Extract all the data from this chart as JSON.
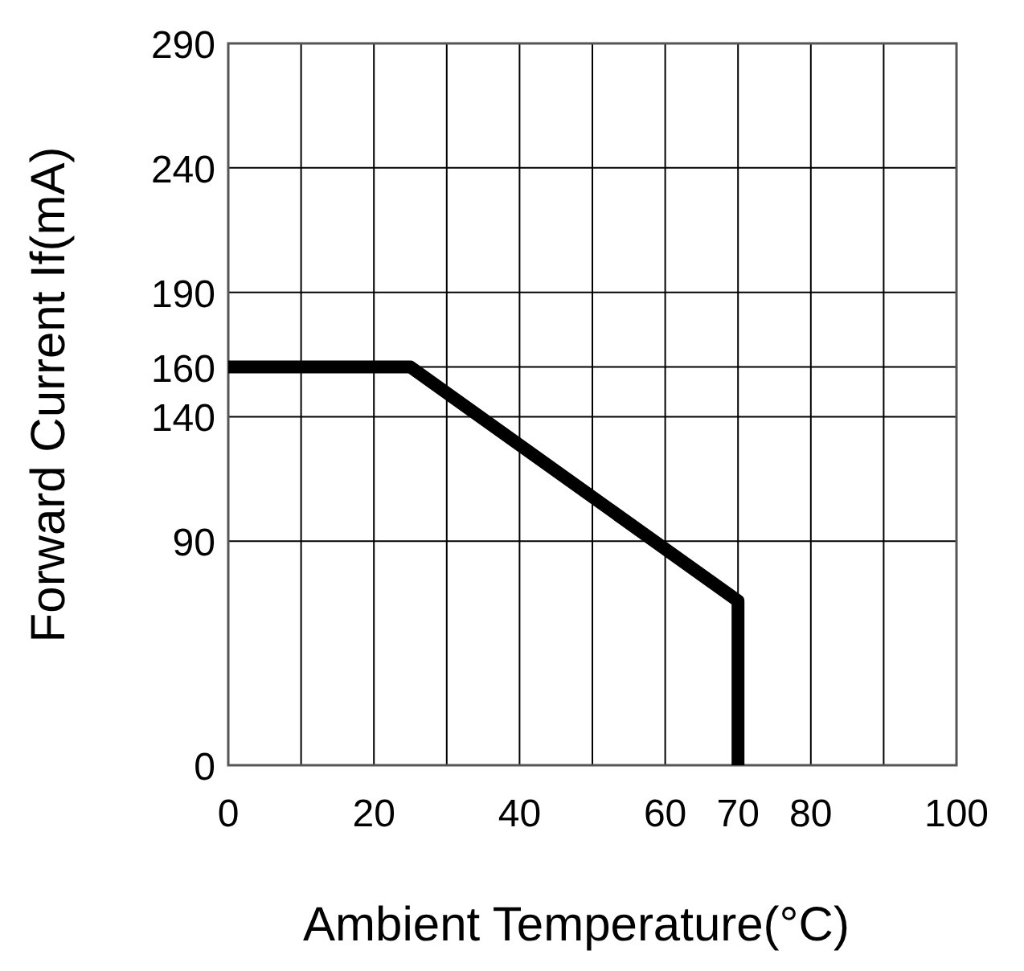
{
  "chart_data": {
    "type": "line",
    "xlabel": "Ambient Temperature(°C)",
    "ylabel": "Forward Current If(mA)",
    "x": [
      0,
      25,
      70,
      70
    ],
    "series": [
      {
        "color": "#000000",
        "values": [
          160,
          160,
          66,
          0
        ]
      }
    ],
    "xlim": [
      0,
      100
    ],
    "xticks": [
      0,
      {
        "value": 10,
        "label": null
      },
      20,
      {
        "value": 30,
        "label": null
      },
      40,
      {
        "value": 50,
        "label": null
      },
      60,
      70,
      80,
      {
        "value": 90,
        "label": null
      },
      100
    ],
    "ylim": [
      0,
      290
    ],
    "yticks": [
      0,
      90,
      140,
      160,
      190,
      240,
      290
    ],
    "grid": true,
    "marker": "none",
    "line_style": "solid"
  }
}
